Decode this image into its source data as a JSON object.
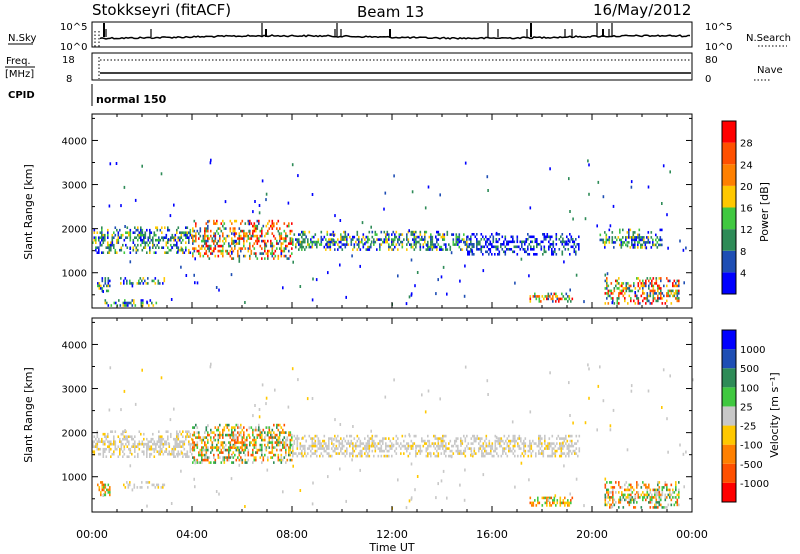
{
  "header": {
    "station": "Stokkseyri (fitACF)",
    "beam": "Beam 13",
    "date": "16/May/2012"
  },
  "top_panels": {
    "nsky_label": "N.Sky",
    "nsky_ticks": [
      "10^5",
      "10^0"
    ],
    "nsearch_label": "N.Search",
    "nsearch_ticks": [
      "10^5",
      "10^0"
    ],
    "freq_label_1": "Freq.",
    "freq_label_2": "[MHz]",
    "freq_ticks": [
      "18",
      "8"
    ],
    "nave_label": "Nave",
    "nave_ticks": [
      "80",
      "0"
    ],
    "cpid_label": "CPID",
    "cpid_value": "normal 150"
  },
  "chart_data": [
    {
      "type": "heatmap",
      "name": "power",
      "ylabel": "Slant Range [km]",
      "xlabel": "",
      "xlim": [
        0,
        24
      ],
      "ylim": [
        200,
        4600
      ],
      "y_ticks": [
        "1000",
        "2000",
        "3000",
        "4000"
      ],
      "colorbar": {
        "label": "Power [dB]",
        "ticks": [
          "4",
          "8",
          "12",
          "16",
          "20",
          "24",
          "28"
        ],
        "colors": [
          "#0000ff",
          "#1e4eb4",
          "#2e8b57",
          "#40c840",
          "#ffc800",
          "#ff8000",
          "#ff5000",
          "#ff0000"
        ]
      },
      "bands": [
        {
          "t0": 0.0,
          "t1": 4.0,
          "r0": 1450,
          "r1": 2050,
          "level": "medium"
        },
        {
          "t0": 4.0,
          "t1": 8.0,
          "r0": 1300,
          "r1": 2200,
          "level": "high"
        },
        {
          "t0": 8.0,
          "t1": 15.0,
          "r0": 1500,
          "r1": 1950,
          "level": "medium"
        },
        {
          "t0": 15.0,
          "t1": 19.5,
          "r0": 1400,
          "r1": 1900,
          "level": "low"
        },
        {
          "t0": 0.2,
          "t1": 0.7,
          "r0": 600,
          "r1": 900,
          "level": "medium"
        },
        {
          "t0": 1.0,
          "t1": 2.9,
          "r0": 750,
          "r1": 900,
          "level": "medium"
        },
        {
          "t0": 0.5,
          "t1": 2.6,
          "r0": 250,
          "r1": 400,
          "level": "medium"
        },
        {
          "t0": 17.5,
          "t1": 19.2,
          "r0": 350,
          "r1": 550,
          "level": "high"
        },
        {
          "t0": 20.5,
          "t1": 23.5,
          "r0": 300,
          "r1": 900,
          "level": "high"
        },
        {
          "t0": 20.3,
          "t1": 22.8,
          "r0": 1600,
          "r1": 2000,
          "level": "medium"
        }
      ]
    },
    {
      "type": "heatmap",
      "name": "velocity",
      "ylabel": "Slant Range [km]",
      "xlabel": "Time UT",
      "xlim": [
        0,
        24
      ],
      "ylim": [
        200,
        4600
      ],
      "x_ticks": [
        "00:00",
        "04:00",
        "08:00",
        "12:00",
        "16:00",
        "20:00",
        "00:00"
      ],
      "y_ticks": [
        "1000",
        "2000",
        "3000",
        "4000"
      ],
      "colorbar": {
        "label": "Velocity [m s⁻¹]",
        "ticks": [
          "1000",
          "500",
          "100",
          "25",
          "-25",
          "-100",
          "-500",
          "-1000"
        ],
        "colors": [
          "#0000ff",
          "#1e4eb4",
          "#2e8b57",
          "#40c840",
          "#c8c8c8",
          "#ffc800",
          "#ff8000",
          "#ff5000",
          "#ff0000"
        ]
      },
      "bands": [
        {
          "t0": 0.0,
          "t1": 4.0,
          "r0": 1450,
          "r1": 2050,
          "level": "ground"
        },
        {
          "t0": 4.0,
          "t1": 8.0,
          "r0": 1300,
          "r1": 2200,
          "level": "mixed"
        },
        {
          "t0": 8.0,
          "t1": 19.5,
          "r0": 1450,
          "r1": 1950,
          "level": "ground"
        },
        {
          "t0": 0.2,
          "t1": 0.7,
          "r0": 600,
          "r1": 900,
          "level": "neg"
        },
        {
          "t0": 1.0,
          "t1": 2.9,
          "r0": 750,
          "r1": 900,
          "level": "ground"
        },
        {
          "t0": 17.5,
          "t1": 19.2,
          "r0": 350,
          "r1": 550,
          "level": "neg"
        },
        {
          "t0": 20.5,
          "t1": 23.5,
          "r0": 300,
          "r1": 900,
          "level": "mixed"
        }
      ]
    }
  ]
}
